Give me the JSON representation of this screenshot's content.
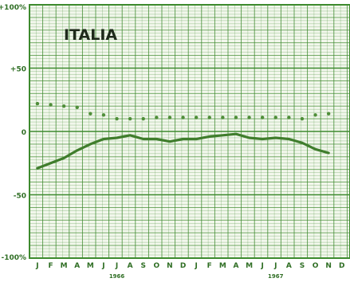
{
  "colors": {
    "grid": "#3d8a2e",
    "ink": "#2f6e24",
    "paper": "#f2f7ec",
    "title": "#1e2a1a",
    "line": "#3f7d2c",
    "dots": "#4f8e39"
  },
  "chart_data": {
    "type": "line",
    "title": "ITALIA",
    "ylim": [
      -100,
      100
    ],
    "y_tick_labels": [
      "+100%",
      "+50",
      "0",
      "-50",
      "-100%"
    ],
    "y_tick_values": [
      100,
      50,
      0,
      -50,
      -100
    ],
    "x_month_labels": [
      "J",
      "F",
      "M",
      "A",
      "M",
      "J",
      "J",
      "A",
      "S",
      "O",
      "N",
      "D",
      "J",
      "F",
      "M",
      "A",
      "M",
      "J",
      "J",
      "A",
      "S",
      "O",
      "N",
      "D"
    ],
    "year_labels": [
      {
        "label": "1966",
        "month_index": 6
      },
      {
        "label": "1967",
        "month_index": 18
      }
    ],
    "grid": true,
    "series": [
      {
        "style": "line",
        "points": [
          [
            0,
            -29
          ],
          [
            1,
            -25
          ],
          [
            2,
            -21
          ],
          [
            3,
            -15
          ],
          [
            4,
            -10
          ],
          [
            5,
            -6
          ],
          [
            6,
            -5
          ],
          [
            7,
            -3
          ],
          [
            8,
            -6
          ],
          [
            9,
            -6
          ],
          [
            10,
            -8
          ],
          [
            11,
            -6
          ],
          [
            12,
            -6
          ],
          [
            13,
            -4
          ],
          [
            14,
            -3
          ],
          [
            15,
            -2
          ],
          [
            16,
            -5
          ],
          [
            17,
            -6
          ],
          [
            18,
            -5
          ],
          [
            19,
            -6
          ],
          [
            20,
            -9
          ],
          [
            21,
            -14
          ],
          [
            22,
            -17
          ]
        ]
      },
      {
        "style": "dots",
        "points": [
          [
            0,
            22
          ],
          [
            1,
            21
          ],
          [
            2,
            20
          ],
          [
            3,
            19
          ],
          [
            4,
            14
          ],
          [
            5,
            13
          ],
          [
            6,
            10
          ],
          [
            7,
            10
          ],
          [
            8,
            10
          ],
          [
            9,
            11
          ],
          [
            10,
            11
          ],
          [
            11,
            11
          ],
          [
            12,
            11
          ],
          [
            13,
            11
          ],
          [
            14,
            11
          ],
          [
            15,
            11
          ],
          [
            16,
            11
          ],
          [
            17,
            11
          ],
          [
            18,
            11
          ],
          [
            19,
            11
          ],
          [
            20,
            10
          ],
          [
            21,
            13
          ],
          [
            22,
            14
          ]
        ]
      }
    ]
  }
}
